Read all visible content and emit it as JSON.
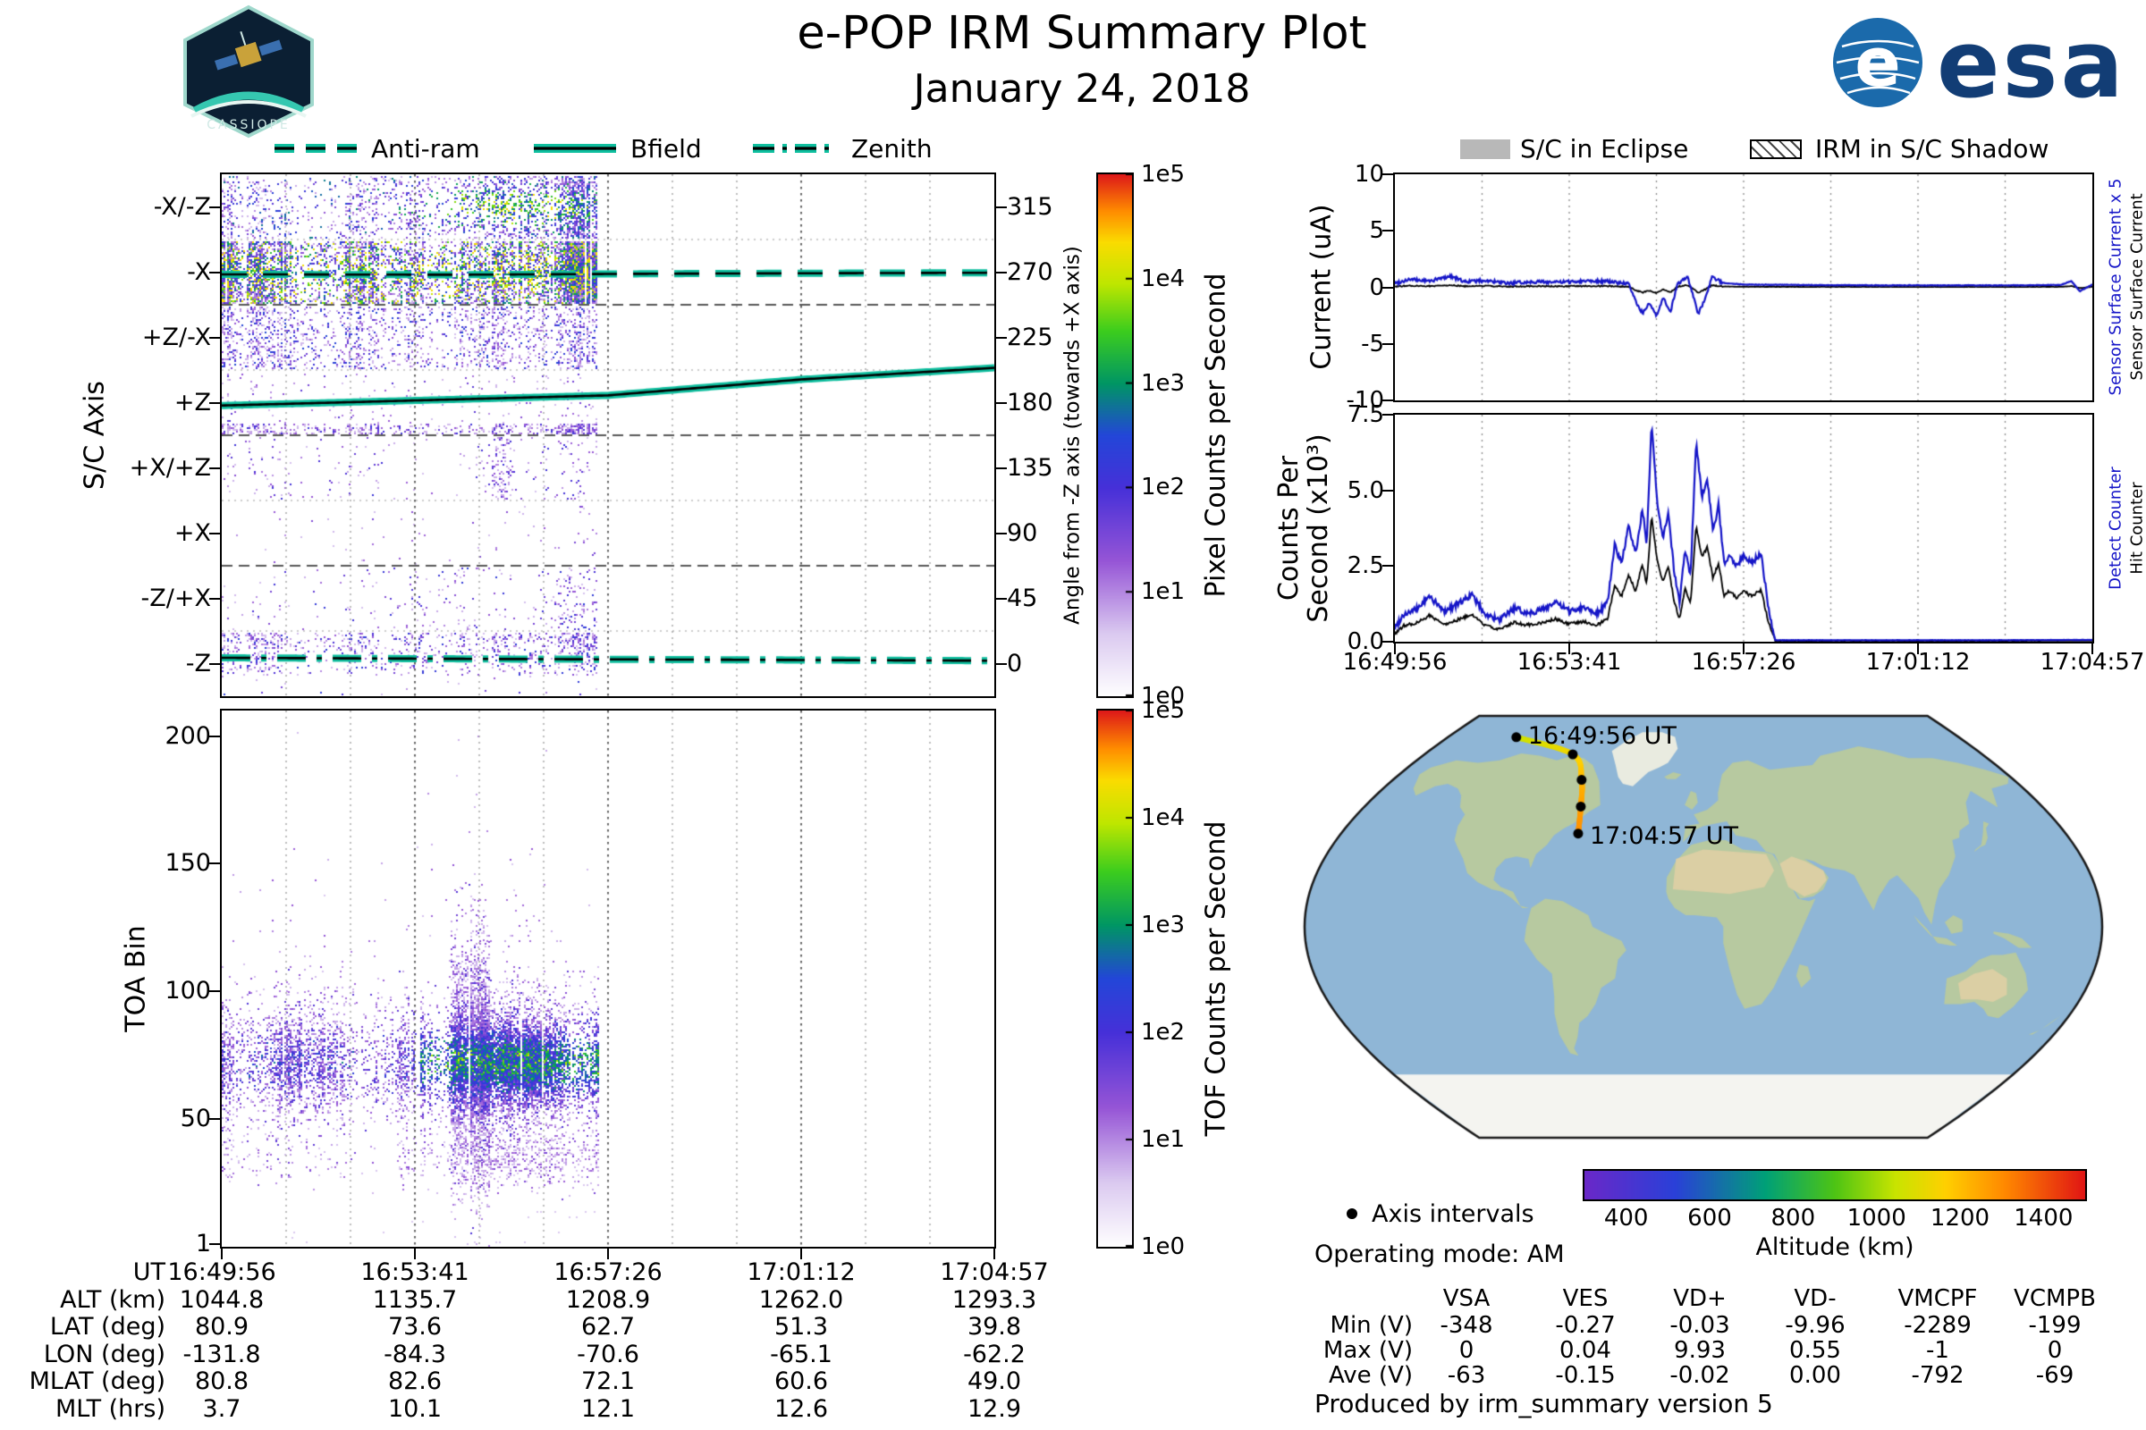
{
  "header": {
    "title": "e-POP IRM Summary Plot",
    "date": "January 24, 2018"
  },
  "logos": {
    "cassiope": "CASSIOPE",
    "esa_wordmark": "esa",
    "esa_letter": "e"
  },
  "left_panel": {
    "line_color": "#0fbf9f",
    "legend": [
      {
        "label": "Anti-ram",
        "style": "dashed"
      },
      {
        "label": "Bfield",
        "style": "solid"
      },
      {
        "label": "Zenith",
        "style": "dashdot"
      }
    ]
  },
  "right_panel": {
    "legend": [
      {
        "label": "S/C in Eclipse",
        "swatch": "gray"
      },
      {
        "label": "IRM in S/C Shadow",
        "swatch": "hatched"
      }
    ],
    "eclipse_color": "#b8b8b8"
  },
  "chart_data": [
    {
      "id": "sc-axis-spectrogram",
      "type": "heatmap",
      "ylabel": "S/C Axis",
      "y_categories": [
        "-X/-Z",
        "-X",
        "+Z/-X",
        "+Z",
        "+X/+Z",
        "+X",
        "-Z/+X",
        "-Z"
      ],
      "right_axis": {
        "label": "Angle from -Z axis (towards +X axis)",
        "ticks": [
          "315",
          "270",
          "225",
          "180",
          "135",
          "90",
          "45",
          "0"
        ]
      },
      "colorbar": {
        "label": "Pixel Counts per Second",
        "ticks": [
          "1e5",
          "1e4",
          "1e3",
          "1e2",
          "1e1",
          "1e0"
        ]
      },
      "time_start": "16:49:56",
      "time_end": "17:04:57",
      "data_end_fraction": 0.485,
      "row_texture": [
        {
          "density": 0.52,
          "vmax": 0.45,
          "boost": 0.28
        },
        {
          "density": 0.97,
          "vmax": 0.78,
          "boost": 0.3
        },
        {
          "density": 0.42,
          "vmax": 0.38,
          "boost": 0
        },
        {
          "density": 0.06,
          "vmax": 0.25,
          "boost": 0,
          "bottom_strip": true
        },
        {
          "density": 0.05,
          "vmax": 0.3,
          "boost": 0
        },
        {
          "density": 0.015,
          "vmax": 0.2,
          "boost": 0
        },
        {
          "density": 0.13,
          "vmax": 0.35,
          "boost": 0,
          "bursts": [
            0.28,
            0.44
          ]
        },
        {
          "density": 0.5,
          "vmax": 0.35,
          "boost": 0,
          "top_half": true
        }
      ],
      "overlays": [
        {
          "name": "Anti-ram",
          "style": "dashed",
          "points": [
            [
              0,
              268.5
            ],
            [
              0.3,
              268.2
            ],
            [
              0.6,
              269.0
            ],
            [
              1,
              269.6
            ]
          ]
        },
        {
          "name": "Bfield",
          "style": "solid",
          "points": [
            [
              0,
              178
            ],
            [
              0.5,
              185
            ],
            [
              0.75,
              196
            ],
            [
              1,
              204
            ]
          ]
        },
        {
          "name": "Zenith",
          "style": "dashdot",
          "points": [
            [
              0,
              4
            ],
            [
              0.35,
              3.2
            ],
            [
              0.7,
              2.6
            ],
            [
              1,
              2
            ]
          ]
        }
      ]
    },
    {
      "id": "toa-spectrogram",
      "type": "heatmap",
      "ylabel": "TOA Bin",
      "yticks": [
        200,
        150,
        100,
        50,
        1
      ],
      "ymax": 210,
      "colorbar": {
        "label": "TOF Counts per Second",
        "ticks": [
          "1e5",
          "1e4",
          "1e3",
          "1e2",
          "1e1",
          "1e0"
        ]
      },
      "data_end_fraction": 0.487,
      "bands": [
        {
          "center_bin": 72,
          "sigma_bins": 13,
          "density": 0.92,
          "core": true
        },
        {
          "center_bin": 35,
          "sigma_bins": 6.5,
          "density": 0.32,
          "core": false
        },
        {
          "center_bin": 105,
          "sigma_bins": 25,
          "density": 0.05,
          "core": false
        }
      ]
    },
    {
      "id": "ephemeris-table",
      "type": "table",
      "rows": [
        {
          "label": "UT",
          "values": [
            "16:49:56",
            "16:53:41",
            "16:57:26",
            "17:01:12",
            "17:04:57"
          ]
        },
        {
          "label": "ALT (km)",
          "values": [
            "1044.8",
            "1135.7",
            "1208.9",
            "1262.0",
            "1293.3"
          ]
        },
        {
          "label": "LAT (deg)",
          "values": [
            "80.9",
            "73.6",
            "62.7",
            "51.3",
            "39.8"
          ]
        },
        {
          "label": "LON (deg)",
          "values": [
            "-131.8",
            "-84.3",
            "-70.6",
            "-65.1",
            "-62.2"
          ]
        },
        {
          "label": "MLAT (deg)",
          "values": [
            "80.8",
            "82.6",
            "72.1",
            "60.6",
            "49.0"
          ]
        },
        {
          "label": "MLT (hrs)",
          "values": [
            "3.7",
            "10.1",
            "12.1",
            "12.6",
            "12.9"
          ]
        }
      ]
    },
    {
      "id": "current-plot",
      "type": "line",
      "ylabel": "Current (uA)",
      "ylim": [
        -10,
        10
      ],
      "yticks": [
        "10",
        "5",
        "0",
        "-5",
        "-10"
      ],
      "series": [
        {
          "name": "Sensor Surface Current x 5",
          "color": "#1515c8",
          "points": [
            [
              0,
              0.35
            ],
            [
              0.02,
              0.7
            ],
            [
              0.05,
              0.55
            ],
            [
              0.08,
              1.0
            ],
            [
              0.1,
              0.5
            ],
            [
              0.13,
              0.6
            ],
            [
              0.16,
              0.35
            ],
            [
              0.2,
              0.5
            ],
            [
              0.24,
              0.45
            ],
            [
              0.28,
              0.6
            ],
            [
              0.31,
              0.5
            ],
            [
              0.335,
              0.3
            ],
            [
              0.345,
              -1.2
            ],
            [
              0.355,
              -2.3
            ],
            [
              0.365,
              -1.4
            ],
            [
              0.375,
              -2.6
            ],
            [
              0.385,
              -0.9
            ],
            [
              0.395,
              -2.2
            ],
            [
              0.405,
              0.3
            ],
            [
              0.42,
              0.9
            ],
            [
              0.435,
              -2.4
            ],
            [
              0.445,
              -0.9
            ],
            [
              0.455,
              0.9
            ],
            [
              0.47,
              0.4
            ],
            [
              0.5,
              0.25
            ],
            [
              0.6,
              0.2
            ],
            [
              0.7,
              0.18
            ],
            [
              0.8,
              0.17
            ],
            [
              0.9,
              0.18
            ],
            [
              0.955,
              0.22
            ],
            [
              0.97,
              0.55
            ],
            [
              0.982,
              -0.35
            ],
            [
              1,
              0.25
            ]
          ],
          "noise": [
            0.14,
            0.47,
            0.025
          ]
        },
        {
          "name": "Sensor Surface Current",
          "color": "#000000",
          "scale_of": 0,
          "factor": 0.2,
          "noise": [
            0.05,
            0.47,
            0.012
          ]
        }
      ],
      "right_labels": [
        {
          "text": "Sensor Surface Current x 5",
          "color": "#1515c8"
        },
        {
          "text": "Sensor Surface Current",
          "color": "#000000"
        }
      ]
    },
    {
      "id": "counts-plot",
      "type": "line",
      "ylabel": "Counts Per\nSecond (x10³)",
      "ylim": [
        0,
        7.5
      ],
      "yticks": [
        "7.5",
        "5.0",
        "2.5",
        "0.0"
      ],
      "xticks": [
        "16:49:56",
        "16:53:41",
        "16:57:26",
        "17:01:12",
        "17:04:57"
      ],
      "series": [
        {
          "name": "Detect Counter",
          "color": "#1515c8",
          "points": [
            [
              0,
              0.45
            ],
            [
              0.012,
              0.9
            ],
            [
              0.03,
              1.05
            ],
            [
              0.05,
              1.5
            ],
            [
              0.07,
              1.0
            ],
            [
              0.09,
              1.25
            ],
            [
              0.11,
              1.55
            ],
            [
              0.13,
              0.9
            ],
            [
              0.15,
              0.7
            ],
            [
              0.17,
              1.1
            ],
            [
              0.19,
              0.95
            ],
            [
              0.21,
              1.05
            ],
            [
              0.23,
              1.3
            ],
            [
              0.25,
              1.0
            ],
            [
              0.27,
              1.15
            ],
            [
              0.29,
              0.95
            ],
            [
              0.305,
              1.3
            ],
            [
              0.315,
              3.2
            ],
            [
              0.325,
              2.6
            ],
            [
              0.335,
              3.8
            ],
            [
              0.345,
              2.9
            ],
            [
              0.355,
              4.4
            ],
            [
              0.361,
              3.2
            ],
            [
              0.368,
              7.2
            ],
            [
              0.376,
              4.6
            ],
            [
              0.384,
              3.4
            ],
            [
              0.392,
              4.3
            ],
            [
              0.4,
              2.4
            ],
            [
              0.408,
              1.3
            ],
            [
              0.416,
              3.0
            ],
            [
              0.424,
              2.2
            ],
            [
              0.432,
              6.6
            ],
            [
              0.44,
              4.8
            ],
            [
              0.448,
              5.4
            ],
            [
              0.456,
              3.6
            ],
            [
              0.464,
              4.5
            ],
            [
              0.472,
              2.6
            ],
            [
              0.48,
              2.9
            ],
            [
              0.49,
              2.5
            ],
            [
              0.5,
              2.85
            ],
            [
              0.512,
              2.6
            ],
            [
              0.525,
              2.95
            ],
            [
              0.535,
              1.2
            ],
            [
              0.545,
              0.05
            ],
            [
              0.6,
              0.05
            ],
            [
              0.7,
              0.05
            ],
            [
              0.85,
              0.05
            ],
            [
              1,
              0.06
            ]
          ],
          "noise": [
            0.1,
            0.545,
            0.004
          ]
        },
        {
          "name": "Hit Counter",
          "color": "#000000",
          "scale_of": 0,
          "factor": 0.58,
          "noise": [
            0.05,
            0.545,
            0.003
          ]
        }
      ],
      "right_labels": [
        {
          "text": "Detect Counter",
          "color": "#1515c8"
        },
        {
          "text": "Hit Counter",
          "color": "#000000"
        }
      ]
    },
    {
      "id": "ground-track-map",
      "type": "map",
      "start_label": "16:49:56 UT",
      "end_label": "17:04:57 UT",
      "track": {
        "lat": [
          80.9,
          73.6,
          62.7,
          51.3,
          39.8
        ],
        "lon": [
          -131.8,
          -84.3,
          -70.6,
          -65.1,
          -62.2
        ],
        "alt_km": [
          1044.8,
          1135.7,
          1208.9,
          1262.0,
          1293.3
        ]
      },
      "legend_label": "Axis intervals",
      "mode_text": "Operating mode: AM",
      "altitude_bar": {
        "label": "Altitude (km)",
        "ticks": [
          400,
          600,
          800,
          1000,
          1200,
          1400
        ],
        "range": [
          300,
          1500
        ]
      }
    },
    {
      "id": "voltage-table",
      "type": "table",
      "columns": [
        "VSA",
        "VES",
        "VD+",
        "VD-",
        "VMCPF",
        "VCMPB"
      ],
      "rows": [
        {
          "label": "Min (V)",
          "values": [
            "-348",
            "-0.27",
            "-0.03",
            "-9.96",
            "-2289",
            "-199"
          ]
        },
        {
          "label": "Max (V)",
          "values": [
            "0",
            "0.04",
            "9.93",
            "0.55",
            "-1",
            "0"
          ]
        },
        {
          "label": "Ave (V)",
          "values": [
            "-63",
            "-0.15",
            "-0.02",
            "0.00",
            "-792",
            "-69"
          ]
        }
      ]
    }
  ],
  "footer": {
    "text": "Produced by irm_summary version 5"
  }
}
